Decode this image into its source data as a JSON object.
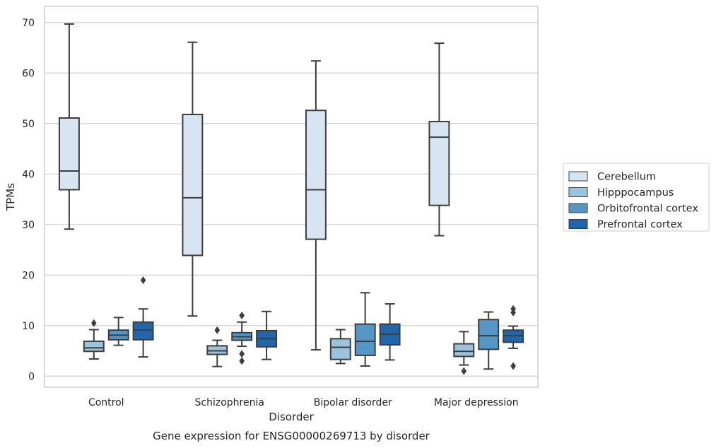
{
  "caption": "Gene expression for ENSG00000269713 by disorder",
  "chart_data": {
    "type": "box",
    "title": "",
    "xlabel": "Disorder",
    "ylabel": "TPMs",
    "ylim": [
      -2.2,
      73.2
    ],
    "yticks": [
      0,
      10,
      20,
      30,
      40,
      50,
      60,
      70
    ],
    "grid": "horizontal",
    "legend_position": "right",
    "categories": [
      "Control",
      "Schizophrenia",
      "Bipolar disorder",
      "Major depression"
    ],
    "series": [
      {
        "name": "Cerebellum",
        "color": "#d7e5f3",
        "boxes": [
          {
            "whisker_low": 29.1,
            "q1": 36.9,
            "median": 40.6,
            "q3": 51.1,
            "whisker_high": 69.7,
            "outliers": []
          },
          {
            "whisker_low": 11.9,
            "q1": 23.9,
            "median": 35.3,
            "q3": 51.8,
            "whisker_high": 66.1,
            "outliers": []
          },
          {
            "whisker_low": 5.2,
            "q1": 27.1,
            "median": 36.9,
            "q3": 52.6,
            "whisker_high": 62.4,
            "outliers": []
          },
          {
            "whisker_low": 27.8,
            "q1": 33.8,
            "median": 47.3,
            "q3": 50.4,
            "whisker_high": 65.9,
            "outliers": []
          }
        ]
      },
      {
        "name": "Hipppocampus",
        "color": "#9cc3dd",
        "boxes": [
          {
            "whisker_low": 3.4,
            "q1": 4.9,
            "median": 5.6,
            "q3": 6.9,
            "whisker_high": 9.2,
            "outliers": [
              10.5
            ]
          },
          {
            "whisker_low": 1.9,
            "q1": 4.3,
            "median": 5.0,
            "q3": 6.0,
            "whisker_high": 7.1,
            "outliers": [
              9.1
            ]
          },
          {
            "whisker_low": 2.5,
            "q1": 3.3,
            "median": 5.7,
            "q3": 7.4,
            "whisker_high": 9.2,
            "outliers": []
          },
          {
            "whisker_low": 2.2,
            "q1": 3.9,
            "median": 4.9,
            "q3": 6.4,
            "whisker_high": 8.8,
            "outliers": [
              1.0
            ]
          }
        ]
      },
      {
        "name": "Orbitofrontal cortex",
        "color": "#5696c6",
        "boxes": [
          {
            "whisker_low": 6.1,
            "q1": 7.2,
            "median": 8.1,
            "q3": 9.1,
            "whisker_high": 11.6,
            "outliers": []
          },
          {
            "whisker_low": 5.9,
            "q1": 7.1,
            "median": 7.8,
            "q3": 8.6,
            "whisker_high": 10.7,
            "outliers": [
              12.0,
              4.4,
              3.0
            ]
          },
          {
            "whisker_low": 2.0,
            "q1": 4.1,
            "median": 6.9,
            "q3": 10.3,
            "whisker_high": 16.5,
            "outliers": []
          },
          {
            "whisker_low": 1.4,
            "q1": 5.3,
            "median": 8.0,
            "q3": 11.2,
            "whisker_high": 12.7,
            "outliers": []
          }
        ]
      },
      {
        "name": "Prefrontal cortex",
        "color": "#2166ac",
        "boxes": [
          {
            "whisker_low": 3.8,
            "q1": 7.2,
            "median": 9.1,
            "q3": 10.7,
            "whisker_high": 13.3,
            "outliers": [
              19.0
            ]
          },
          {
            "whisker_low": 3.3,
            "q1": 5.8,
            "median": 7.4,
            "q3": 9.0,
            "whisker_high": 12.8,
            "outliers": []
          },
          {
            "whisker_low": 3.2,
            "q1": 6.2,
            "median": 8.3,
            "q3": 10.3,
            "whisker_high": 14.3,
            "outliers": []
          },
          {
            "whisker_low": 5.5,
            "q1": 6.7,
            "median": 8.0,
            "q3": 9.1,
            "whisker_high": 9.9,
            "outliers": [
              13.3,
              12.6,
              2.0
            ]
          }
        ]
      }
    ]
  }
}
